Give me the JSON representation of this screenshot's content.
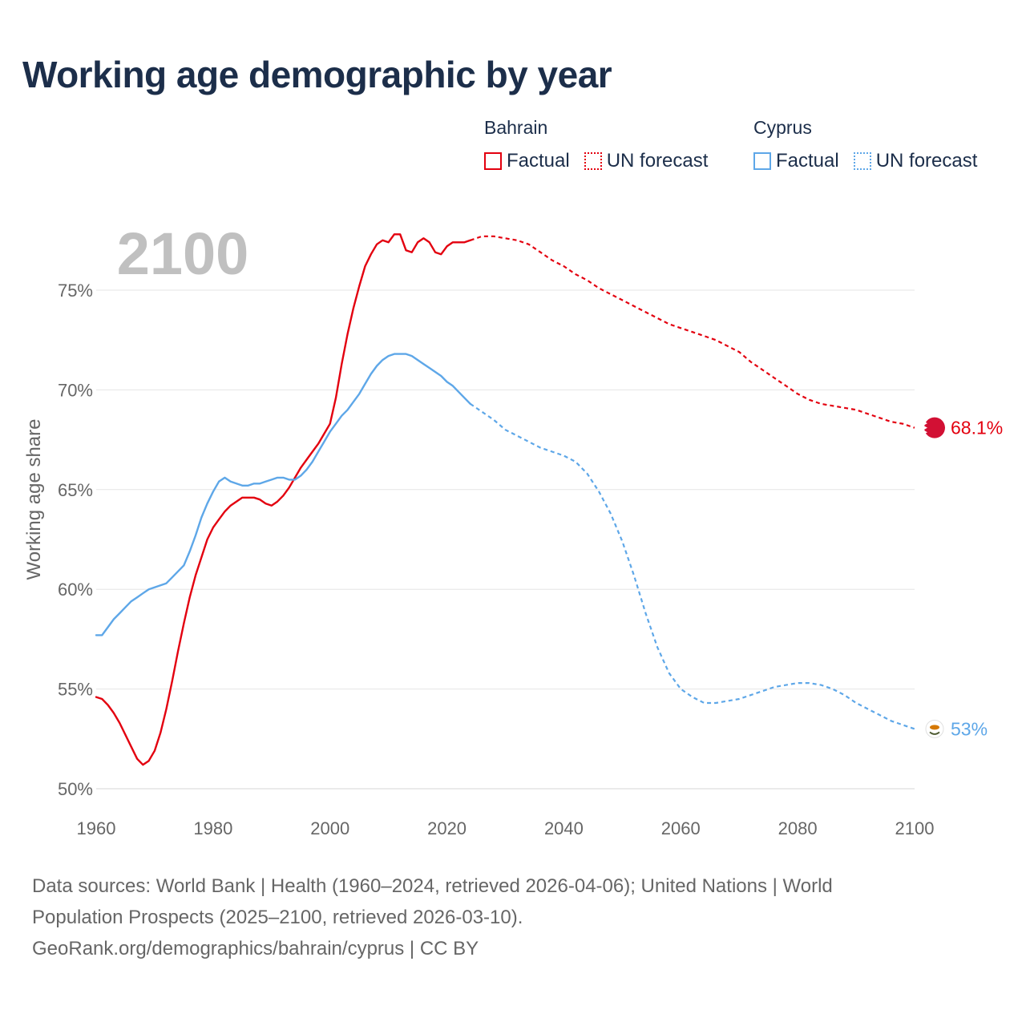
{
  "title": "Working age demographic by year",
  "footer": {
    "line1": "Data sources: World Bank | Health (1960–2024, retrieved 2026-04-06); United Nations | World",
    "line2": "Population Prospects (2025–2100, retrieved 2026-03-10).",
    "line3": "GeoRank.org/demographics/bahrain/cyprus | CC BY"
  },
  "legend": {
    "groups": [
      {
        "name": "Bahrain",
        "color": "#e3000f",
        "factual_label": "Factual",
        "forecast_label": "UN forecast"
      },
      {
        "name": "Cyprus",
        "color": "#5ea7e8",
        "factual_label": "Factual",
        "forecast_label": "UN forecast"
      }
    ]
  },
  "chart_data": {
    "type": "line",
    "title": "Working age demographic by year",
    "year_watermark": "2100",
    "xlabel": "",
    "ylabel": "Working age share",
    "xlim": [
      1960,
      2100
    ],
    "ylim": [
      50,
      78
    ],
    "x_ticks": [
      "1960",
      "1980",
      "2000",
      "2020",
      "2040",
      "2060",
      "2080",
      "2100"
    ],
    "y_ticks": [
      {
        "value": 50,
        "label": "50%"
      },
      {
        "value": 55,
        "label": "55%"
      },
      {
        "value": 60,
        "label": "60%"
      },
      {
        "value": 65,
        "label": "65%"
      },
      {
        "value": 70,
        "label": "70%"
      },
      {
        "value": 75,
        "label": "75%"
      }
    ],
    "grid": true,
    "factual_end_year": 2024,
    "series": [
      {
        "name": "Bahrain",
        "color": "#e3000f",
        "end_label": "68.1%",
        "factual": [
          [
            1960,
            54.6
          ],
          [
            1961,
            54.5
          ],
          [
            1962,
            54.2
          ],
          [
            1963,
            53.8
          ],
          [
            1964,
            53.3
          ],
          [
            1965,
            52.7
          ],
          [
            1966,
            52.1
          ],
          [
            1967,
            51.5
          ],
          [
            1968,
            51.2
          ],
          [
            1969,
            51.4
          ],
          [
            1970,
            51.9
          ],
          [
            1971,
            52.8
          ],
          [
            1972,
            54.0
          ],
          [
            1973,
            55.4
          ],
          [
            1974,
            56.9
          ],
          [
            1975,
            58.3
          ],
          [
            1976,
            59.6
          ],
          [
            1977,
            60.7
          ],
          [
            1978,
            61.6
          ],
          [
            1979,
            62.5
          ],
          [
            1980,
            63.1
          ],
          [
            1981,
            63.5
          ],
          [
            1982,
            63.9
          ],
          [
            1983,
            64.2
          ],
          [
            1984,
            64.4
          ],
          [
            1985,
            64.6
          ],
          [
            1986,
            64.6
          ],
          [
            1987,
            64.6
          ],
          [
            1988,
            64.5
          ],
          [
            1989,
            64.3
          ],
          [
            1990,
            64.2
          ],
          [
            1991,
            64.4
          ],
          [
            1992,
            64.7
          ],
          [
            1993,
            65.1
          ],
          [
            1994,
            65.6
          ],
          [
            1995,
            66.1
          ],
          [
            1996,
            66.5
          ],
          [
            1997,
            66.9
          ],
          [
            1998,
            67.3
          ],
          [
            1999,
            67.8
          ],
          [
            2000,
            68.3
          ],
          [
            2001,
            69.6
          ],
          [
            2002,
            71.3
          ],
          [
            2003,
            72.8
          ],
          [
            2004,
            74.1
          ],
          [
            2005,
            75.2
          ],
          [
            2006,
            76.2
          ],
          [
            2007,
            76.8
          ],
          [
            2008,
            77.3
          ],
          [
            2009,
            77.5
          ],
          [
            2010,
            77.4
          ],
          [
            2011,
            77.8
          ],
          [
            2012,
            77.8
          ],
          [
            2013,
            77.0
          ],
          [
            2014,
            76.9
          ],
          [
            2015,
            77.4
          ],
          [
            2016,
            77.6
          ],
          [
            2017,
            77.4
          ],
          [
            2018,
            76.9
          ],
          [
            2019,
            76.8
          ],
          [
            2020,
            77.2
          ],
          [
            2021,
            77.4
          ],
          [
            2022,
            77.4
          ],
          [
            2023,
            77.4
          ],
          [
            2024,
            77.5
          ]
        ],
        "forecast": [
          [
            2024,
            77.5
          ],
          [
            2026,
            77.7
          ],
          [
            2028,
            77.7
          ],
          [
            2030,
            77.6
          ],
          [
            2032,
            77.5
          ],
          [
            2034,
            77.3
          ],
          [
            2036,
            76.9
          ],
          [
            2038,
            76.5
          ],
          [
            2040,
            76.2
          ],
          [
            2042,
            75.8
          ],
          [
            2044,
            75.5
          ],
          [
            2046,
            75.1
          ],
          [
            2048,
            74.8
          ],
          [
            2050,
            74.5
          ],
          [
            2052,
            74.2
          ],
          [
            2054,
            73.9
          ],
          [
            2056,
            73.6
          ],
          [
            2058,
            73.3
          ],
          [
            2060,
            73.1
          ],
          [
            2062,
            72.9
          ],
          [
            2064,
            72.7
          ],
          [
            2066,
            72.5
          ],
          [
            2068,
            72.2
          ],
          [
            2070,
            71.9
          ],
          [
            2072,
            71.4
          ],
          [
            2074,
            71.0
          ],
          [
            2076,
            70.6
          ],
          [
            2078,
            70.2
          ],
          [
            2080,
            69.8
          ],
          [
            2082,
            69.5
          ],
          [
            2084,
            69.3
          ],
          [
            2086,
            69.2
          ],
          [
            2088,
            69.1
          ],
          [
            2090,
            69.0
          ],
          [
            2092,
            68.8
          ],
          [
            2094,
            68.6
          ],
          [
            2096,
            68.4
          ],
          [
            2098,
            68.3
          ],
          [
            2100,
            68.1
          ]
        ]
      },
      {
        "name": "Cyprus",
        "color": "#5ea7e8",
        "end_label": "53%",
        "factual": [
          [
            1960,
            57.7
          ],
          [
            1961,
            57.7
          ],
          [
            1962,
            58.1
          ],
          [
            1963,
            58.5
          ],
          [
            1964,
            58.8
          ],
          [
            1965,
            59.1
          ],
          [
            1966,
            59.4
          ],
          [
            1967,
            59.6
          ],
          [
            1968,
            59.8
          ],
          [
            1969,
            60.0
          ],
          [
            1970,
            60.1
          ],
          [
            1971,
            60.2
          ],
          [
            1972,
            60.3
          ],
          [
            1973,
            60.6
          ],
          [
            1974,
            60.9
          ],
          [
            1975,
            61.2
          ],
          [
            1976,
            61.9
          ],
          [
            1977,
            62.7
          ],
          [
            1978,
            63.6
          ],
          [
            1979,
            64.3
          ],
          [
            1980,
            64.9
          ],
          [
            1981,
            65.4
          ],
          [
            1982,
            65.6
          ],
          [
            1983,
            65.4
          ],
          [
            1984,
            65.3
          ],
          [
            1985,
            65.2
          ],
          [
            1986,
            65.2
          ],
          [
            1987,
            65.3
          ],
          [
            1988,
            65.3
          ],
          [
            1989,
            65.4
          ],
          [
            1990,
            65.5
          ],
          [
            1991,
            65.6
          ],
          [
            1992,
            65.6
          ],
          [
            1993,
            65.5
          ],
          [
            1994,
            65.5
          ],
          [
            1995,
            65.7
          ],
          [
            1996,
            66.0
          ],
          [
            1997,
            66.4
          ],
          [
            1998,
            66.9
          ],
          [
            1999,
            67.4
          ],
          [
            2000,
            67.9
          ],
          [
            2001,
            68.3
          ],
          [
            2002,
            68.7
          ],
          [
            2003,
            69.0
          ],
          [
            2004,
            69.4
          ],
          [
            2005,
            69.8
          ],
          [
            2006,
            70.3
          ],
          [
            2007,
            70.8
          ],
          [
            2008,
            71.2
          ],
          [
            2009,
            71.5
          ],
          [
            2010,
            71.7
          ],
          [
            2011,
            71.8
          ],
          [
            2012,
            71.8
          ],
          [
            2013,
            71.8
          ],
          [
            2014,
            71.7
          ],
          [
            2015,
            71.5
          ],
          [
            2016,
            71.3
          ],
          [
            2017,
            71.1
          ],
          [
            2018,
            70.9
          ],
          [
            2019,
            70.7
          ],
          [
            2020,
            70.4
          ],
          [
            2021,
            70.2
          ],
          [
            2022,
            69.9
          ],
          [
            2023,
            69.6
          ],
          [
            2024,
            69.3
          ]
        ],
        "forecast": [
          [
            2024,
            69.3
          ],
          [
            2026,
            68.9
          ],
          [
            2028,
            68.5
          ],
          [
            2030,
            68.0
          ],
          [
            2032,
            67.7
          ],
          [
            2034,
            67.4
          ],
          [
            2036,
            67.1
          ],
          [
            2038,
            66.9
          ],
          [
            2040,
            66.7
          ],
          [
            2042,
            66.4
          ],
          [
            2044,
            65.8
          ],
          [
            2046,
            64.9
          ],
          [
            2048,
            63.8
          ],
          [
            2050,
            62.4
          ],
          [
            2052,
            60.7
          ],
          [
            2054,
            58.8
          ],
          [
            2056,
            57.1
          ],
          [
            2058,
            55.8
          ],
          [
            2060,
            55.0
          ],
          [
            2062,
            54.6
          ],
          [
            2064,
            54.3
          ],
          [
            2066,
            54.3
          ],
          [
            2068,
            54.4
          ],
          [
            2070,
            54.5
          ],
          [
            2072,
            54.7
          ],
          [
            2074,
            54.9
          ],
          [
            2076,
            55.1
          ],
          [
            2078,
            55.2
          ],
          [
            2080,
            55.3
          ],
          [
            2082,
            55.3
          ],
          [
            2084,
            55.2
          ],
          [
            2086,
            55.0
          ],
          [
            2088,
            54.7
          ],
          [
            2090,
            54.3
          ],
          [
            2092,
            54.0
          ],
          [
            2094,
            53.7
          ],
          [
            2096,
            53.4
          ],
          [
            2098,
            53.2
          ],
          [
            2100,
            53.0
          ]
        ]
      }
    ]
  }
}
